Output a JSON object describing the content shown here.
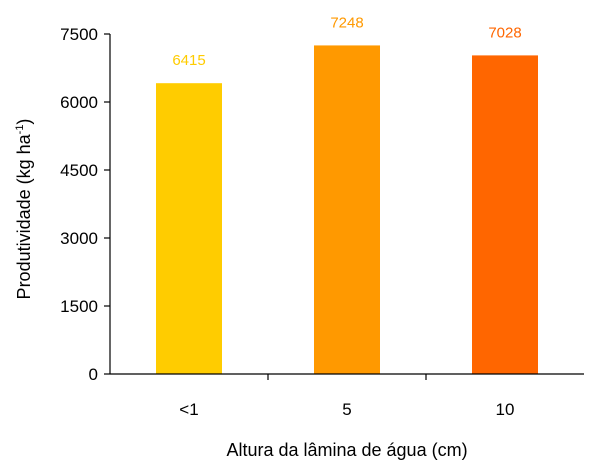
{
  "chart_data": {
    "type": "bar",
    "categories": [
      "<1",
      "5",
      "10"
    ],
    "values": [
      6415,
      7248,
      7028
    ],
    "value_labels": [
      "6415",
      "7248",
      "7028"
    ],
    "bar_colors": [
      "#FFCC00",
      "#FF9900",
      "#FF6600"
    ],
    "xlabel": "Altura da lâmina de água (cm)",
    "ylabel": "Produtividade (kg ha",
    "ylabel_superscript": "-1",
    "ylabel_close": ")",
    "ylim": [
      0,
      7500
    ],
    "yticks": [
      0,
      1500,
      3000,
      4500,
      6000,
      7500
    ],
    "ytick_labels": [
      "0",
      "1500",
      "3000",
      "4500",
      "6000",
      "7500"
    ],
    "grid": false,
    "legend": "none"
  }
}
